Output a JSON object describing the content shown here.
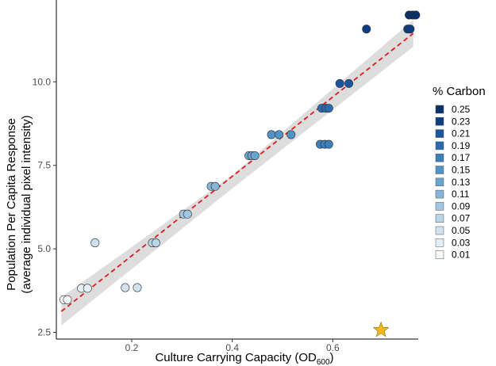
{
  "chart_data": {
    "type": "scatter",
    "xlabel": "Culture Carrying Capacity (OD",
    "xlabel_subscript": "600",
    "xlabel_suffix": ")",
    "ylabel_line1": "Population Per Capita Response",
    "ylabel_line2": "(average individual pixel intensity)",
    "xlim": [
      0.05,
      0.77
    ],
    "ylim": [
      2.3,
      12.45
    ],
    "x_ticks": [
      0.2,
      0.4,
      0.6
    ],
    "x_tick_labels": [
      "0.2",
      "0.4",
      "0.6"
    ],
    "y_ticks": [
      2.5,
      5.0,
      7.5,
      10.0
    ],
    "y_tick_labels": [
      "2.5",
      "5.0",
      "7.5",
      "10.0"
    ],
    "grid": false,
    "legend": {
      "title": "% Carbon",
      "position": "right",
      "entries": [
        {
          "label": "0.25",
          "color": "#08306b"
        },
        {
          "label": "0.23",
          "color": "#0b3f80"
        },
        {
          "label": "0.21",
          "color": "#1a55a0"
        },
        {
          "label": "0.19",
          "color": "#2a6aae"
        },
        {
          "label": "0.17",
          "color": "#3b80bb"
        },
        {
          "label": "0.15",
          "color": "#5293c6"
        },
        {
          "label": "0.13",
          "color": "#6aa5cf"
        },
        {
          "label": "0.11",
          "color": "#85b6d8"
        },
        {
          "label": "0.09",
          "color": "#a0c6e0"
        },
        {
          "label": "0.07",
          "color": "#b9d5e8"
        },
        {
          "label": "0.05",
          "color": "#d0e2f0"
        },
        {
          "label": "0.03",
          "color": "#e3eef7"
        },
        {
          "label": "0.01",
          "color": "#f5f9fc"
        }
      ]
    },
    "series": [
      {
        "points": [
          {
            "x": 0.065,
            "y": 3.48,
            "carbon": "0.01"
          },
          {
            "x": 0.072,
            "y": 3.48,
            "carbon": "0.01"
          },
          {
            "x": 0.1,
            "y": 3.82,
            "carbon": "0.03"
          },
          {
            "x": 0.112,
            "y": 3.82,
            "carbon": "0.03"
          },
          {
            "x": 0.127,
            "y": 5.18,
            "carbon": "0.05"
          },
          {
            "x": 0.187,
            "y": 3.84,
            "carbon": "0.05"
          },
          {
            "x": 0.211,
            "y": 3.84,
            "carbon": "0.05"
          },
          {
            "x": 0.241,
            "y": 5.18,
            "carbon": "0.07"
          },
          {
            "x": 0.248,
            "y": 5.18,
            "carbon": "0.07"
          },
          {
            "x": 0.303,
            "y": 6.04,
            "carbon": "0.09"
          },
          {
            "x": 0.311,
            "y": 6.04,
            "carbon": "0.09"
          },
          {
            "x": 0.358,
            "y": 6.87,
            "carbon": "0.11"
          },
          {
            "x": 0.366,
            "y": 6.87,
            "carbon": "0.11"
          },
          {
            "x": 0.433,
            "y": 7.79,
            "carbon": "0.13"
          },
          {
            "x": 0.439,
            "y": 7.79,
            "carbon": "0.13"
          },
          {
            "x": 0.445,
            "y": 7.79,
            "carbon": "0.13"
          },
          {
            "x": 0.478,
            "y": 8.42,
            "carbon": "0.15"
          },
          {
            "x": 0.493,
            "y": 8.42,
            "carbon": "0.15"
          },
          {
            "x": 0.517,
            "y": 8.42,
            "carbon": "0.15"
          },
          {
            "x": 0.575,
            "y": 8.13,
            "carbon": "0.17"
          },
          {
            "x": 0.584,
            "y": 8.13,
            "carbon": "0.17"
          },
          {
            "x": 0.592,
            "y": 8.13,
            "carbon": "0.17"
          },
          {
            "x": 0.578,
            "y": 9.21,
            "carbon": "0.19"
          },
          {
            "x": 0.586,
            "y": 9.21,
            "carbon": "0.19"
          },
          {
            "x": 0.592,
            "y": 9.21,
            "carbon": "0.19"
          },
          {
            "x": 0.614,
            "y": 9.95,
            "carbon": "0.21"
          },
          {
            "x": 0.632,
            "y": 9.95,
            "carbon": "0.21"
          },
          {
            "x": 0.667,
            "y": 11.58,
            "carbon": "0.23"
          },
          {
            "x": 0.749,
            "y": 11.58,
            "carbon": "0.23"
          },
          {
            "x": 0.754,
            "y": 11.58,
            "carbon": "0.23"
          },
          {
            "x": 0.752,
            "y": 12.0,
            "carbon": "0.25"
          },
          {
            "x": 0.759,
            "y": 12.0,
            "carbon": "0.25"
          },
          {
            "x": 0.765,
            "y": 12.0,
            "carbon": "0.25"
          }
        ]
      }
    ],
    "fit_line": {
      "x0": 0.06,
      "y0": 3.13,
      "x1": 0.76,
      "y1": 11.45,
      "color": "#e41a1c",
      "style": "dashed"
    },
    "confidence_band": {
      "upper": [
        [
          0.06,
          3.55
        ],
        [
          0.4,
          7.21
        ],
        [
          0.76,
          11.85
        ]
      ],
      "lower": [
        [
          0.06,
          2.71
        ],
        [
          0.4,
          6.81
        ],
        [
          0.76,
          11.05
        ]
      ],
      "color": "#d9d9d9"
    },
    "star_marker": {
      "x": 0.696,
      "y": 2.57,
      "color": "#f5b81c"
    }
  }
}
